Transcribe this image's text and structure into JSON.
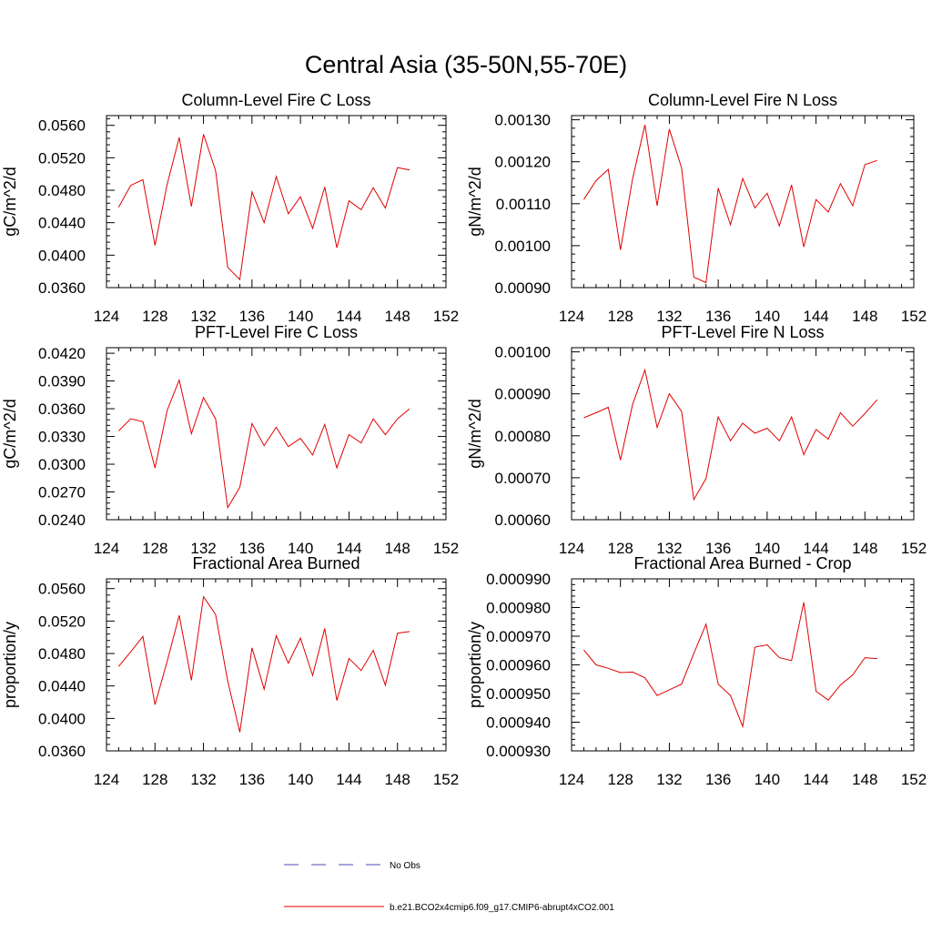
{
  "figure": {
    "title": "Central Asia (35-50N,55-70E)"
  },
  "legend": {
    "entries": [
      {
        "label": "No Obs",
        "color": "#4b4bb4",
        "style": "dashed"
      },
      {
        "label": "b.e21.BCO2x4cmip6.f09_g17.CMIP6-abrupt4xCO2.001",
        "color": "#e00000",
        "style": "solid"
      }
    ]
  },
  "chart_data": [
    {
      "type": "line",
      "title": "Column-Level Fire C Loss",
      "ylabel": "gC/m^2/d",
      "xlim": [
        124,
        152
      ],
      "ylim": [
        0.036,
        0.0572
      ],
      "xticks": [
        "124",
        "128",
        "132",
        "136",
        "140",
        "144",
        "148",
        "152"
      ],
      "yticks": [
        "0.0360",
        "0.0400",
        "0.0440",
        "0.0480",
        "0.0520",
        "0.0560"
      ],
      "x": [
        125,
        126,
        127,
        128,
        129,
        130,
        131,
        132,
        133,
        134,
        135,
        136,
        137,
        138,
        139,
        140,
        141,
        142,
        143,
        144,
        145,
        146,
        147,
        148,
        149
      ],
      "series": [
        {
          "name": "b.e21.BCO2x4cmip6.f09_g17.CMIP6-abrupt4xCO2.001",
          "color": "#e00000",
          "values": [
            0.0459,
            0.0486,
            0.0493,
            0.0412,
            0.0487,
            0.0545,
            0.046,
            0.0549,
            0.0504,
            0.0385,
            0.037,
            0.0478,
            0.044,
            0.0497,
            0.0451,
            0.0472,
            0.0433,
            0.0484,
            0.0409,
            0.0467,
            0.0456,
            0.0483,
            0.0458,
            0.0508,
            0.0505
          ]
        }
      ]
    },
    {
      "type": "line",
      "title": "Column-Level Fire N Loss",
      "ylabel": "gN/m^2/d",
      "xlim": [
        124,
        152
      ],
      "ylim": [
        0.0009,
        0.00131
      ],
      "xticks": [
        "124",
        "128",
        "132",
        "136",
        "140",
        "144",
        "148",
        "152"
      ],
      "yticks": [
        "0.00090",
        "0.00100",
        "0.00110",
        "0.00120",
        "0.00130"
      ],
      "x": [
        125,
        126,
        127,
        128,
        129,
        130,
        131,
        132,
        133,
        134,
        135,
        136,
        137,
        138,
        139,
        140,
        141,
        142,
        143,
        144,
        145,
        146,
        147,
        148,
        149
      ],
      "series": [
        {
          "name": "b.e21.BCO2x4cmip6.f09_g17.CMIP6-abrupt4xCO2.001",
          "color": "#e00000",
          "values": [
            0.00111,
            0.001155,
            0.001182,
            0.00099,
            0.00116,
            0.001288,
            0.001095,
            0.001278,
            0.001185,
            0.000925,
            0.000912,
            0.001137,
            0.00105,
            0.00116,
            0.00109,
            0.001125,
            0.001047,
            0.001145,
            0.000997,
            0.00111,
            0.00108,
            0.001148,
            0.001095,
            0.001193,
            0.001203
          ]
        }
      ]
    },
    {
      "type": "line",
      "title": "PFT-Level Fire C Loss",
      "ylabel": "gC/m^2/d",
      "xlim": [
        124,
        152
      ],
      "ylim": [
        0.024,
        0.0426
      ],
      "xticks": [
        "124",
        "128",
        "132",
        "136",
        "140",
        "144",
        "148",
        "152"
      ],
      "yticks": [
        "0.0240",
        "0.0270",
        "0.0300",
        "0.0330",
        "0.0360",
        "0.0390",
        "0.0420"
      ],
      "x": [
        125,
        126,
        127,
        128,
        129,
        130,
        131,
        132,
        133,
        134,
        135,
        136,
        137,
        138,
        139,
        140,
        141,
        142,
        143,
        144,
        145,
        146,
        147,
        148,
        149
      ],
      "series": [
        {
          "name": "b.e21.BCO2x4cmip6.f09_g17.CMIP6-abrupt4xCO2.001",
          "color": "#e00000",
          "values": [
            0.0336,
            0.0349,
            0.0346,
            0.0296,
            0.0358,
            0.0391,
            0.0333,
            0.0372,
            0.0349,
            0.0253,
            0.0275,
            0.0344,
            0.032,
            0.034,
            0.0319,
            0.0328,
            0.031,
            0.0343,
            0.0296,
            0.0332,
            0.0323,
            0.0349,
            0.0332,
            0.0349,
            0.036
          ]
        }
      ]
    },
    {
      "type": "line",
      "title": "PFT-Level Fire N Loss",
      "ylabel": "gN/m^2/d",
      "xlim": [
        124,
        152
      ],
      "ylim": [
        0.0006,
        0.00101
      ],
      "xticks": [
        "124",
        "128",
        "132",
        "136",
        "140",
        "144",
        "148",
        "152"
      ],
      "yticks": [
        "0.00060",
        "0.00070",
        "0.00080",
        "0.00090",
        "0.00100"
      ],
      "x": [
        125,
        126,
        127,
        128,
        129,
        130,
        131,
        132,
        133,
        134,
        135,
        136,
        137,
        138,
        139,
        140,
        141,
        142,
        143,
        144,
        145,
        146,
        147,
        148,
        149
      ],
      "series": [
        {
          "name": "b.e21.BCO2x4cmip6.f09_g17.CMIP6-abrupt4xCO2.001",
          "color": "#e00000",
          "values": [
            0.000843,
            0.000855,
            0.000868,
            0.000742,
            0.000875,
            0.000957,
            0.00082,
            0.0009,
            0.000858,
            0.000648,
            0.000698,
            0.000845,
            0.000788,
            0.00083,
            0.000806,
            0.000818,
            0.000788,
            0.000845,
            0.000755,
            0.000815,
            0.000792,
            0.000855,
            0.000823,
            0.000853,
            0.000886
          ]
        }
      ]
    },
    {
      "type": "line",
      "title": "Fractional Area Burned",
      "ylabel": "proportion/y",
      "xlim": [
        124,
        152
      ],
      "ylim": [
        0.036,
        0.0572
      ],
      "xticks": [
        "124",
        "128",
        "132",
        "136",
        "140",
        "144",
        "148",
        "152"
      ],
      "yticks": [
        "0.0360",
        "0.0400",
        "0.0440",
        "0.0480",
        "0.0520",
        "0.0560"
      ],
      "x": [
        125,
        126,
        127,
        128,
        129,
        130,
        131,
        132,
        133,
        134,
        135,
        136,
        137,
        138,
        139,
        140,
        141,
        142,
        143,
        144,
        145,
        146,
        147,
        148,
        149
      ],
      "series": [
        {
          "name": "b.e21.BCO2x4cmip6.f09_g17.CMIP6-abrupt4xCO2.001",
          "color": "#e00000",
          "values": [
            0.0464,
            0.0482,
            0.0501,
            0.0417,
            0.047,
            0.0527,
            0.0447,
            0.055,
            0.0528,
            0.0446,
            0.0383,
            0.0487,
            0.0436,
            0.0502,
            0.0468,
            0.0499,
            0.0453,
            0.0511,
            0.0422,
            0.0474,
            0.0459,
            0.0484,
            0.0441,
            0.0505,
            0.0507
          ]
        }
      ]
    },
    {
      "type": "line",
      "title": "Fractional Area Burned - Crop",
      "ylabel": "proportion/y",
      "xlim": [
        124,
        152
      ],
      "ylim": [
        0.00093,
        0.00099
      ],
      "xticks": [
        "124",
        "128",
        "132",
        "136",
        "140",
        "144",
        "148",
        "152"
      ],
      "yticks": [
        "0.000930",
        "0.000940",
        "0.000950",
        "0.000960",
        "0.000970",
        "0.000980",
        "0.000990"
      ],
      "x": [
        125,
        126,
        127,
        128,
        129,
        130,
        131,
        132,
        133,
        134,
        135,
        136,
        137,
        138,
        139,
        140,
        141,
        142,
        143,
        144,
        145,
        146,
        147,
        148,
        149
      ],
      "series": [
        {
          "name": "b.e21.BCO2x4cmip6.f09_g17.CMIP6-abrupt4xCO2.001",
          "color": "#e00000",
          "values": [
            0.0009652,
            0.00096,
            0.0009588,
            0.0009573,
            0.0009575,
            0.0009555,
            0.0009493,
            0.0009513,
            0.0009533,
            0.000964,
            0.0009742,
            0.0009533,
            0.0009493,
            0.0009385,
            0.0009662,
            0.000967,
            0.0009625,
            0.0009615,
            0.0009818,
            0.0009508,
            0.0009477,
            0.000953,
            0.0009565,
            0.0009625,
            0.0009622
          ]
        }
      ]
    }
  ]
}
